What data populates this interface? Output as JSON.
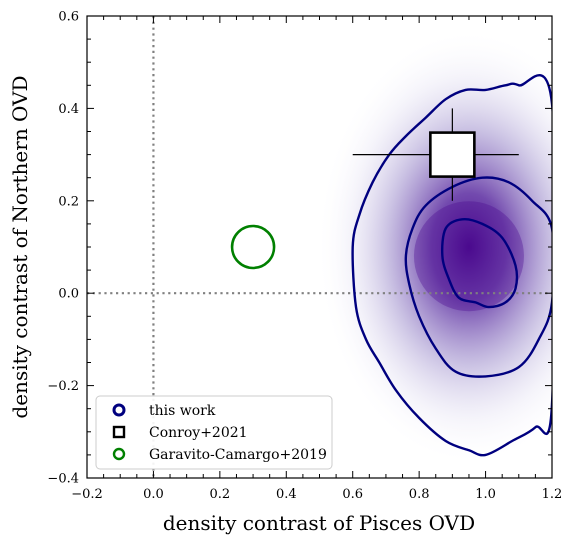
{
  "chart_data": {
    "type": "scatter",
    "xlabel": "density contrast of Pisces OVD",
    "ylabel": "density contrast of Northern OVD",
    "xlim": [
      -0.2,
      1.2
    ],
    "ylim": [
      -0.4,
      0.6
    ],
    "xticks": [
      -0.2,
      0.0,
      0.2,
      0.4,
      0.6,
      0.8,
      1.0,
      1.2
    ],
    "yticks": [
      -0.4,
      -0.2,
      0.0,
      0.2,
      0.4,
      0.6
    ],
    "xtick_labels": [
      "−0.2",
      "0.0",
      "0.2",
      "0.4",
      "0.6",
      "0.8",
      "1.0",
      "1.2"
    ],
    "ytick_labels": [
      "−0.4",
      "−0.2",
      "0.0",
      "0.2",
      "0.4",
      "0.6"
    ],
    "reference_lines": {
      "x": 0.0,
      "y": 0.0,
      "style": "dotted",
      "color": "#808080"
    },
    "grid": false,
    "legend_position": "lower-left",
    "series": [
      {
        "name": "this work",
        "kind": "density-contours",
        "color": "#00007f",
        "peak": {
          "x": 0.95,
          "y": 0.08
        },
        "contours": [
          {
            "level": "inner",
            "points": [
              [
                0.88,
                0.14
              ],
              [
                0.93,
                0.16
              ],
              [
                0.99,
                0.15
              ],
              [
                1.05,
                0.12
              ],
              [
                1.09,
                0.06
              ],
              [
                1.09,
                0.01
              ],
              [
                1.06,
                -0.02
              ],
              [
                1.01,
                -0.03
              ],
              [
                0.97,
                -0.02
              ],
              [
                0.92,
                -0.01
              ],
              [
                0.89,
                0.03
              ],
              [
                0.87,
                0.08
              ]
            ]
          },
          {
            "level": "middle",
            "points": [
              [
                0.82,
                0.19
              ],
              [
                0.9,
                0.23
              ],
              [
                0.99,
                0.25
              ],
              [
                1.07,
                0.24
              ],
              [
                1.14,
                0.2
              ],
              [
                1.2,
                0.14
              ],
              [
                1.2,
                -0.02
              ],
              [
                1.16,
                -0.1
              ],
              [
                1.1,
                -0.16
              ],
              [
                1.0,
                -0.18
              ],
              [
                0.91,
                -0.17
              ],
              [
                0.85,
                -0.12
              ],
              [
                0.8,
                -0.05
              ],
              [
                0.77,
                0.02
              ],
              [
                0.76,
                0.08
              ],
              [
                0.78,
                0.14
              ]
            ]
          },
          {
            "level": "outer",
            "points": [
              [
                0.76,
                0.34
              ],
              [
                0.82,
                0.38
              ],
              [
                0.88,
                0.42
              ],
              [
                0.94,
                0.44
              ],
              [
                1.0,
                0.44
              ],
              [
                1.06,
                0.45
              ],
              [
                1.1,
                0.45
              ],
              [
                1.2,
                0.41
              ],
              [
                1.2,
                -0.24
              ],
              [
                1.15,
                -0.29
              ],
              [
                1.08,
                -0.32
              ],
              [
                1.0,
                -0.35
              ],
              [
                0.95,
                -0.34
              ],
              [
                0.88,
                -0.32
              ],
              [
                0.8,
                -0.27
              ],
              [
                0.73,
                -0.21
              ],
              [
                0.68,
                -0.15
              ],
              [
                0.64,
                -0.1
              ],
              [
                0.61,
                -0.03
              ],
              [
                0.6,
                0.1
              ],
              [
                0.62,
                0.17
              ],
              [
                0.66,
                0.24
              ],
              [
                0.71,
                0.3
              ]
            ]
          }
        ]
      },
      {
        "name": "Conroy+2021",
        "kind": "point-with-errors",
        "marker": "square",
        "x": 0.9,
        "y": 0.3,
        "xerr": [
          0.3,
          0.2
        ],
        "yerr": [
          0.1,
          0.1
        ],
        "color": "#000000"
      },
      {
        "name": "Garavito-Camargo+2019",
        "kind": "point",
        "marker": "open-circle",
        "x": 0.3,
        "y": 0.1,
        "color": "#008000"
      }
    ]
  }
}
